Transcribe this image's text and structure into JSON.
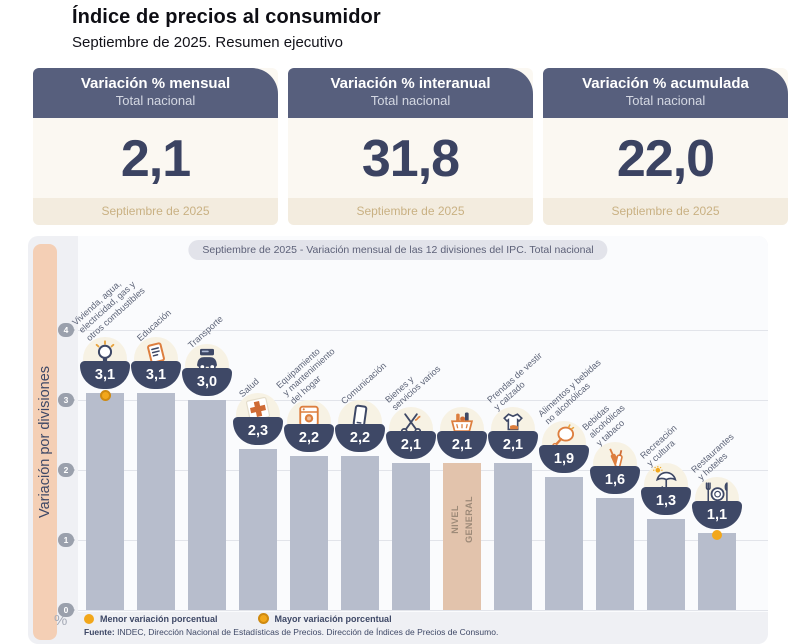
{
  "page": {
    "title": "Índice de precios al consumidor",
    "subtitle": "Septiembre de 2025. Resumen ejecutivo"
  },
  "summary_cards": [
    {
      "title": "Variación % mensual",
      "scope": "Total nacional",
      "value": "2,1",
      "period": "Septiembre de 2025"
    },
    {
      "title": "Variación % interanual",
      "scope": "Total nacional",
      "value": "31,8",
      "period": "Septiembre de 2025"
    },
    {
      "title": "Variación % acumulada",
      "scope": "Total nacional",
      "value": "22,0",
      "period": "Septiembre de 2025"
    }
  ],
  "chart_data": {
    "type": "bar",
    "title": "Septiembre de 2025 - Variación mensual de las 12 divisiones del IPC. Total nacional",
    "ylabel": "Variación por divisiones",
    "y_unit": "%",
    "ylim": [
      0,
      4
    ],
    "yticks": [
      4,
      3,
      2,
      1,
      0
    ],
    "grid": true,
    "categories": [
      "Vivienda, agua, electricidad, gas y otros combustibles",
      "Educación",
      "Transporte",
      "Salud",
      "Equipamiento y mantenimiento del hogar",
      "Comunicación",
      "Bienes y servicios varios",
      "NIVEL GENERAL",
      "Prendas de vestir y calzado",
      "Alimentos y bebidas no alcohólicas",
      "Bebidas alcohólicas y tabaco",
      "Recreación y cultura",
      "Restaurantes y hoteles"
    ],
    "values": [
      3.1,
      3.1,
      3.0,
      2.3,
      2.2,
      2.2,
      2.1,
      2.1,
      2.1,
      1.9,
      1.6,
      1.3,
      1.1
    ],
    "columns": [
      {
        "label": "Vivienda, agua,\nelectricidad, gas y\notros combustibles",
        "value": 3.1,
        "display": "3,1",
        "icon": "lightbulb-icon",
        "marker": "mayor"
      },
      {
        "label": "Educación",
        "value": 3.1,
        "display": "3,1",
        "icon": "notebook-icon"
      },
      {
        "label": "Transporte",
        "value": 3.0,
        "display": "3,0",
        "icon": "car-icon"
      },
      {
        "label": "Salud",
        "value": 2.3,
        "display": "2,3",
        "icon": "medical-cross-icon"
      },
      {
        "label": "Equipamiento\ny mantenimiento\ndel hogar",
        "value": 2.2,
        "display": "2,2",
        "icon": "washing-machine-icon"
      },
      {
        "label": "Comunicación",
        "value": 2.2,
        "display": "2,2",
        "icon": "mobile-phone-icon"
      },
      {
        "label": "Bienes y\nservicios varios",
        "value": 2.1,
        "display": "2,1",
        "icon": "scissors-icon"
      },
      {
        "label": "NIVEL\nGENERAL",
        "value": 2.1,
        "display": "2,1",
        "icon": "shopping-basket-icon",
        "general": true
      },
      {
        "label": "Prendas de vestir\ny calzado",
        "value": 2.1,
        "display": "2,1",
        "icon": "tshirt-icon"
      },
      {
        "label": "Alimentos y bebidas\nno alcohólicas",
        "value": 1.9,
        "display": "1,9",
        "icon": "poultry-icon"
      },
      {
        "label": "Bebidas\nalcohólicas\ny tabaco",
        "value": 1.6,
        "display": "1,6",
        "icon": "bottles-icon"
      },
      {
        "label": "Recreación\ny cultura",
        "value": 1.3,
        "display": "1,3",
        "icon": "umbrella-icon"
      },
      {
        "label": "Restaurantes\ny hoteles",
        "value": 1.1,
        "display": "1,1",
        "icon": "cutlery-icon",
        "marker": "menor"
      }
    ],
    "legend": [
      {
        "label": "Menor variación porcentual",
        "marker": "menor"
      },
      {
        "label": "Mayor variación porcentual",
        "marker": "mayor"
      }
    ],
    "source_label": "Fuente:",
    "source_text": "INDEC, Dirección Nacional de Estadísticas de Precios. Dirección de Índices de Precios de Consumo.",
    "colors": {
      "bar": "#b7bdcc",
      "bar_general": "#e2c3ac",
      "badge_navy": "#3e4866",
      "accent_orange": "#dd7e3e",
      "marker_yellow": "#f2a71b",
      "panel_bg": "#eff0f4",
      "strip_peach": "#f4cfb5",
      "card_header": "#575f7d",
      "card_body": "#fbf8f2",
      "card_footer": "#f3ecdf",
      "period_text": "#c9b183"
    }
  }
}
